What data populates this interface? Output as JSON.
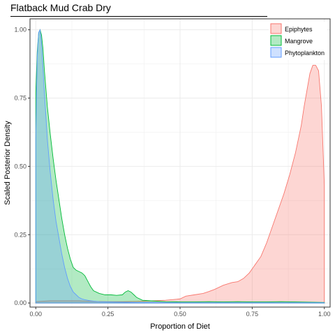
{
  "title": "Flatback Mud Crab Dry",
  "chart_data": {
    "type": "area",
    "title": "Flatback Mud Crab Dry",
    "xlabel": "Proportion of Diet",
    "ylabel": "Scaled Posterior Density",
    "xlim": [
      -0.02,
      1.02
    ],
    "ylim": [
      -0.015,
      1.04
    ],
    "x_ticks": [
      0,
      0.25,
      0.5,
      0.75,
      1
    ],
    "x_tick_labels": [
      "0.00",
      "0.25",
      "0.50",
      "0.75",
      "1.00"
    ],
    "y_ticks": [
      0,
      0.25,
      0.5,
      0.75,
      1
    ],
    "y_tick_labels": [
      "0.00",
      "0.25",
      "0.50",
      "0.75",
      "1.00"
    ],
    "grid": true,
    "legend_position": "top-right",
    "series": [
      {
        "name": "Epiphytes",
        "fill": "#F8766D",
        "x": [
          0.0,
          0.05,
          0.1,
          0.15,
          0.2,
          0.25,
          0.3,
          0.35,
          0.4,
          0.45,
          0.5,
          0.52,
          0.55,
          0.58,
          0.6,
          0.62,
          0.65,
          0.68,
          0.7,
          0.72,
          0.74,
          0.76,
          0.78,
          0.8,
          0.82,
          0.84,
          0.86,
          0.88,
          0.9,
          0.92,
          0.93,
          0.94,
          0.95,
          0.96,
          0.97,
          0.98,
          0.99,
          1.0
        ],
        "y": [
          0.005,
          0.008,
          0.008,
          0.008,
          0.006,
          0.005,
          0.005,
          0.006,
          0.008,
          0.01,
          0.015,
          0.025,
          0.03,
          0.035,
          0.042,
          0.05,
          0.065,
          0.075,
          0.078,
          0.09,
          0.11,
          0.14,
          0.17,
          0.22,
          0.28,
          0.34,
          0.4,
          0.47,
          0.55,
          0.65,
          0.72,
          0.78,
          0.84,
          0.87,
          0.87,
          0.85,
          0.72,
          0.43
        ]
      },
      {
        "name": "Mangrove",
        "fill": "#00BA38",
        "x": [
          0.0,
          0.005,
          0.01,
          0.015,
          0.02,
          0.025,
          0.03,
          0.04,
          0.05,
          0.06,
          0.07,
          0.08,
          0.09,
          0.1,
          0.11,
          0.12,
          0.13,
          0.14,
          0.15,
          0.16,
          0.17,
          0.18,
          0.19,
          0.2,
          0.22,
          0.24,
          0.26,
          0.28,
          0.3,
          0.31,
          0.32,
          0.33,
          0.34,
          0.35,
          0.37,
          0.4,
          0.45,
          0.5,
          0.55,
          0.6,
          0.65,
          0.7,
          0.75,
          0.8,
          0.85,
          0.9,
          0.95,
          1.0
        ],
        "y": [
          0.77,
          0.92,
          0.99,
          1.0,
          0.98,
          0.93,
          0.85,
          0.72,
          0.62,
          0.53,
          0.45,
          0.38,
          0.31,
          0.25,
          0.2,
          0.16,
          0.13,
          0.12,
          0.115,
          0.11,
          0.1,
          0.08,
          0.06,
          0.045,
          0.035,
          0.03,
          0.03,
          0.028,
          0.03,
          0.04,
          0.045,
          0.04,
          0.03,
          0.02,
          0.01,
          0.008,
          0.005,
          0.004,
          0.004,
          0.005,
          0.004,
          0.005,
          0.004,
          0.004,
          0.005,
          0.004,
          0.003,
          0.002
        ]
      },
      {
        "name": "Phytoplankton",
        "fill": "#619CFF",
        "x": [
          0.0,
          0.005,
          0.01,
          0.015,
          0.02,
          0.025,
          0.03,
          0.04,
          0.05,
          0.06,
          0.07,
          0.08,
          0.09,
          0.1,
          0.11,
          0.12,
          0.13,
          0.14,
          0.15,
          0.16,
          0.17,
          0.18,
          0.19,
          0.2,
          0.22,
          0.25,
          0.3,
          0.35,
          0.4,
          0.5,
          0.6,
          0.7,
          0.8,
          0.9,
          1.0
        ],
        "y": [
          0.6,
          0.9,
          0.99,
          1.0,
          0.95,
          0.86,
          0.77,
          0.6,
          0.48,
          0.38,
          0.3,
          0.24,
          0.18,
          0.13,
          0.09,
          0.06,
          0.04,
          0.03,
          0.02,
          0.015,
          0.012,
          0.01,
          0.008,
          0.007,
          0.005,
          0.004,
          0.003,
          0.002,
          0.002,
          0.001,
          0.001,
          0.001,
          0.001,
          0.001,
          0.001
        ]
      }
    ]
  }
}
